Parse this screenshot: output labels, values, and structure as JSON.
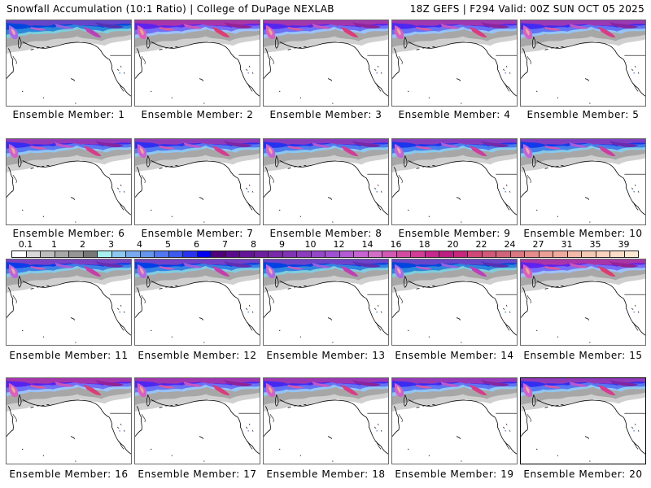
{
  "header": {
    "title_left": "Snowfall Accumulation (10:1 Ratio) | College of DuPage NEXLAB",
    "title_right": "18Z GEFS | F294 Valid: 00Z SUN OCT 05 2025"
  },
  "members": [
    {
      "label": "Ensemble Member: 1"
    },
    {
      "label": "Ensemble Member: 2"
    },
    {
      "label": "Ensemble Member: 3"
    },
    {
      "label": "Ensemble Member: 4"
    },
    {
      "label": "Ensemble Member: 5"
    },
    {
      "label": "Ensemble Member: 6"
    },
    {
      "label": "Ensemble Member: 7"
    },
    {
      "label": "Ensemble Member: 8"
    },
    {
      "label": "Ensemble Member: 9"
    },
    {
      "label": "Ensemble Member: 10"
    },
    {
      "label": "Ensemble Member: 11"
    },
    {
      "label": "Ensemble Member: 12"
    },
    {
      "label": "Ensemble Member: 13"
    },
    {
      "label": "Ensemble Member: 14"
    },
    {
      "label": "Ensemble Member: 15"
    },
    {
      "label": "Ensemble Member: 16"
    },
    {
      "label": "Ensemble Member: 17"
    },
    {
      "label": "Ensemble Member: 18"
    },
    {
      "label": "Ensemble Member: 19"
    },
    {
      "label": "Ensemble Member: 20"
    }
  ],
  "legend": {
    "labels": [
      "0.1",
      "1",
      "2",
      "3",
      "4",
      "5",
      "6",
      "7",
      "8",
      "9",
      "10",
      "12",
      "14",
      "16",
      "18",
      "20",
      "22",
      "24",
      "27",
      "31",
      "35",
      "39"
    ],
    "colors": [
      "#ffffff",
      "#d8d8d8",
      "#bdbdbd",
      "#a8a8a8",
      "#969696",
      "#787878",
      "#a8f0f0",
      "#8cc8f0",
      "#78aaf0",
      "#6496f0",
      "#5078f0",
      "#3c5af0",
      "#2832f0",
      "#0000f0",
      "#500078",
      "#5a0a8c",
      "#641496",
      "#6e1ea0",
      "#7828a8",
      "#8232b4",
      "#8c3cbe",
      "#9646c8",
      "#a050d2",
      "#b45ad2",
      "#c864d2",
      "#d26ec8",
      "#d25ab4",
      "#d24ba0",
      "#d23c96",
      "#c8288c",
      "#be1e82",
      "#c8287c",
      "#d24678",
      "#d25a78",
      "#d2647a",
      "#dc7882",
      "#e68c8c",
      "#eba096",
      "#f0aaa0",
      "#f5b9aa",
      "#f5c8b4",
      "#fad2be",
      "#fadcc8",
      "#ffe8d2"
    ]
  },
  "colors": {
    "panel_border": "#6a6a6a",
    "coastline": "#000000"
  }
}
